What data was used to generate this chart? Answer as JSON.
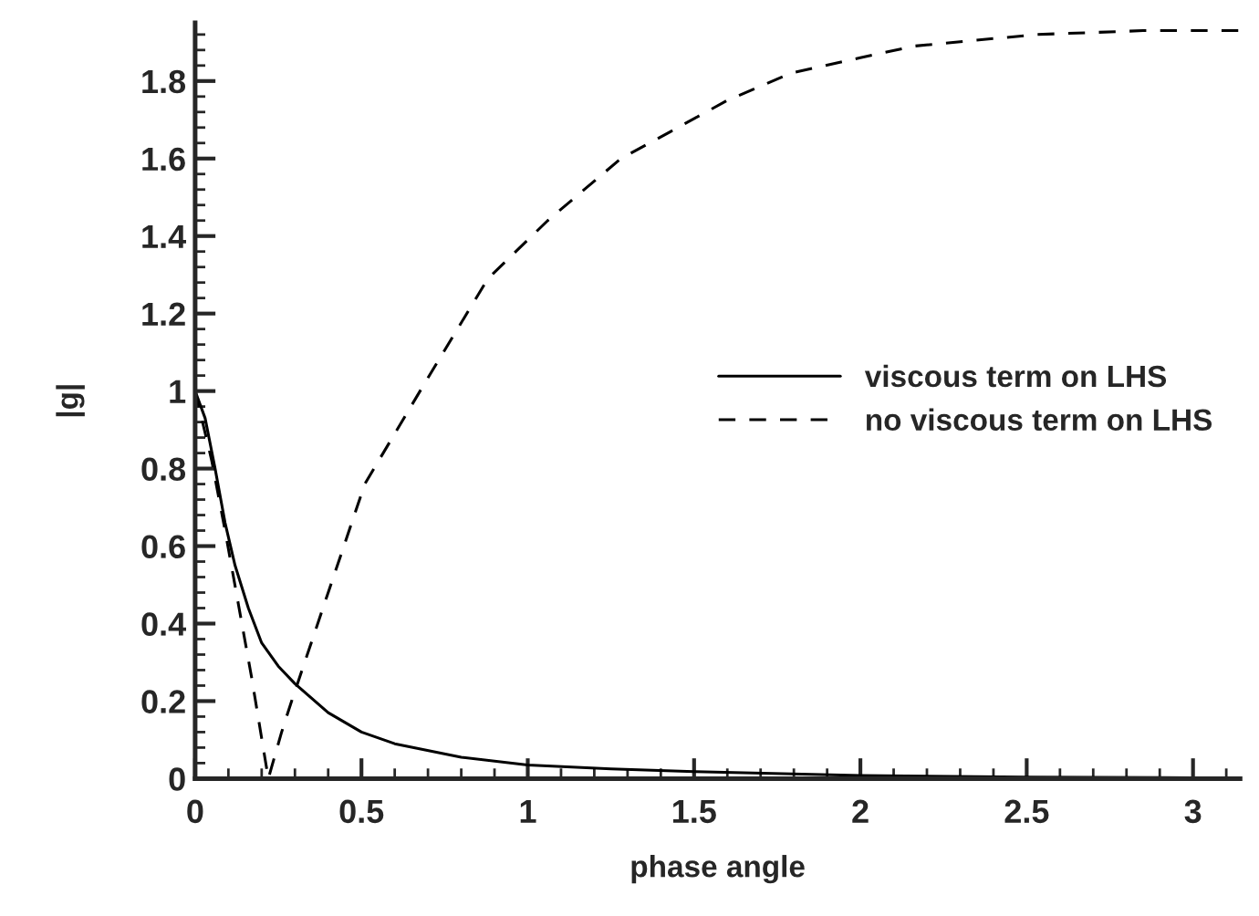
{
  "chart_data": {
    "type": "line",
    "xlabel": "phase angle",
    "ylabel": "|g|",
    "xlim": [
      0,
      3.1416
    ],
    "ylim": [
      0,
      1.95
    ],
    "xticks": [
      0,
      0.5,
      1,
      1.5,
      2,
      2.5,
      3
    ],
    "yticks": [
      0,
      0.2,
      0.4,
      0.6,
      0.8,
      1,
      1.2,
      1.4,
      1.6,
      1.8
    ],
    "legend": "center right",
    "grid": false,
    "marker": "none",
    "series": [
      {
        "name": "viscous term on LHS",
        "color": "#000000",
        "line_style": "solid",
        "x": [
          0,
          0.03,
          0.06,
          0.09,
          0.12,
          0.16,
          0.2,
          0.25,
          0.3,
          0.4,
          0.5,
          0.6,
          0.8,
          1,
          1.25,
          1.5,
          2,
          2.5,
          3,
          3.1416
        ],
        "values": [
          1,
          0.93,
          0.8,
          0.66,
          0.55,
          0.44,
          0.35,
          0.29,
          0.245,
          0.17,
          0.12,
          0.09,
          0.055,
          0.035,
          0.025,
          0.018,
          0.008,
          0.004,
          0.002,
          0.002
        ]
      },
      {
        "name": "no viscous term on LHS",
        "color": "#000000",
        "line_style": "dashed",
        "x": [
          0,
          0.05,
          0.09,
          0.13,
          0.17,
          0.22,
          0.26,
          0.29,
          0.4,
          0.51,
          0.69,
          0.88,
          1.06,
          1.28,
          1.43,
          1.6,
          1.79,
          2.0,
          2.16,
          2.53,
          2.85,
          3.1416
        ],
        "values": [
          1,
          0.82,
          0.64,
          0.45,
          0.26,
          0.0,
          0.12,
          0.2,
          0.48,
          0.76,
          1.02,
          1.29,
          1.44,
          1.6,
          1.67,
          1.75,
          1.82,
          1.86,
          1.89,
          1.92,
          1.93,
          1.93
        ]
      }
    ]
  }
}
